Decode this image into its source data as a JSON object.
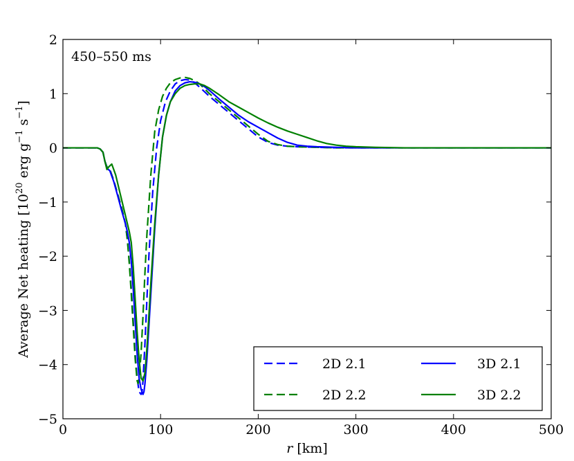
{
  "chart_data": {
    "type": "line",
    "title": "",
    "annotation": "450–550 ms",
    "xlabel_var": "r",
    "xlabel_unit": " [km]",
    "ylabel": "Average Net heating [10",
    "ylabel_exp1": "20",
    "ylabel_mid": " erg g",
    "ylabel_exp2": "−1",
    "ylabel_mid2": " s",
    "ylabel_exp3": "−1",
    "ylabel_end": "]",
    "xlim": [
      0,
      500
    ],
    "ylim": [
      -5,
      2
    ],
    "xticks": [
      0,
      100,
      200,
      300,
      400,
      500
    ],
    "xtick_labels": [
      "0",
      "100",
      "200",
      "300",
      "400",
      "500"
    ],
    "yticks": [
      -5,
      -4,
      -3,
      -2,
      -1,
      0,
      1,
      2
    ],
    "ytick_labels": [
      "−5",
      "−4",
      "−3",
      "−2",
      "−1",
      "0",
      "1",
      "2"
    ],
    "legend_location": "lower-right",
    "series": [
      {
        "name": "2D 2.1",
        "color": "#0000ff",
        "style": "dashed",
        "x": [
          0,
          30,
          35,
          38,
          41,
          43,
          45,
          48,
          52,
          56,
          60,
          64,
          66,
          68,
          70,
          72,
          74,
          76,
          78,
          80,
          81,
          82,
          84,
          86,
          88,
          92,
          96,
          100,
          105,
          110,
          115,
          120,
          125,
          130,
          135,
          140,
          150,
          160,
          170,
          180,
          190,
          200,
          210,
          220,
          230,
          240,
          260,
          280,
          300,
          350,
          400,
          450,
          500
        ],
        "y": [
          0,
          0,
          0,
          -0.02,
          -0.08,
          -0.25,
          -0.35,
          -0.4,
          -0.6,
          -0.85,
          -1.1,
          -1.4,
          -1.7,
          -2.1,
          -2.6,
          -3.2,
          -3.8,
          -4.25,
          -4.5,
          -4.55,
          -4.5,
          -4.3,
          -3.6,
          -2.8,
          -2.0,
          -0.8,
          0.0,
          0.5,
          0.85,
          1.05,
          1.18,
          1.24,
          1.26,
          1.25,
          1.2,
          1.12,
          0.95,
          0.8,
          0.65,
          0.5,
          0.35,
          0.2,
          0.1,
          0.05,
          0.03,
          0.02,
          0.01,
          0.0,
          0.0,
          0.0,
          0.0,
          0.0,
          0.0
        ]
      },
      {
        "name": "2D 2.2",
        "color": "#008000",
        "style": "dashed",
        "x": [
          0,
          30,
          35,
          38,
          41,
          43,
          45,
          48,
          52,
          56,
          60,
          64,
          66,
          68,
          70,
          72,
          74,
          76,
          77,
          78,
          80,
          82,
          84,
          86,
          90,
          94,
          98,
          102,
          106,
          110,
          115,
          120,
          125,
          130,
          135,
          140,
          150,
          160,
          170,
          180,
          190,
          200,
          210,
          220,
          230,
          240,
          260,
          280,
          300,
          350,
          400,
          450,
          500
        ],
        "y": [
          0,
          0,
          0,
          -0.02,
          -0.08,
          -0.25,
          -0.35,
          -0.4,
          -0.6,
          -0.85,
          -1.1,
          -1.4,
          -1.7,
          -2.15,
          -2.7,
          -3.3,
          -3.9,
          -4.3,
          -4.35,
          -4.25,
          -3.8,
          -3.1,
          -2.3,
          -1.6,
          -0.5,
          0.3,
          0.7,
          0.95,
          1.1,
          1.2,
          1.26,
          1.29,
          1.3,
          1.28,
          1.24,
          1.18,
          1.0,
          0.85,
          0.7,
          0.55,
          0.4,
          0.25,
          0.12,
          0.06,
          0.03,
          0.02,
          0.01,
          0.0,
          0.0,
          0.0,
          0.0,
          0.0,
          0.0
        ]
      },
      {
        "name": "3D 2.1",
        "color": "#0000ff",
        "style": "solid",
        "x": [
          0,
          30,
          35,
          38,
          41,
          43,
          45,
          48,
          52,
          56,
          60,
          64,
          66,
          68,
          70,
          72,
          74,
          76,
          78,
          80,
          82,
          83,
          84,
          86,
          88,
          90,
          94,
          98,
          102,
          106,
          110,
          115,
          120,
          125,
          130,
          135,
          140,
          145,
          150,
          160,
          170,
          180,
          190,
          200,
          210,
          220,
          230,
          240,
          250,
          260,
          280,
          300,
          350,
          400,
          450,
          500
        ],
        "y": [
          0,
          0,
          0,
          -0.02,
          -0.08,
          -0.25,
          -0.38,
          -0.42,
          -0.62,
          -0.88,
          -1.15,
          -1.4,
          -1.55,
          -1.75,
          -2.1,
          -2.6,
          -3.2,
          -3.8,
          -4.25,
          -4.45,
          -4.55,
          -4.5,
          -4.35,
          -3.9,
          -3.3,
          -2.7,
          -1.5,
          -0.5,
          0.2,
          0.6,
          0.85,
          1.05,
          1.15,
          1.2,
          1.22,
          1.21,
          1.18,
          1.13,
          1.06,
          0.9,
          0.75,
          0.6,
          0.48,
          0.38,
          0.28,
          0.18,
          0.1,
          0.05,
          0.03,
          0.02,
          0.01,
          0.0,
          0.0,
          0.0,
          0.0,
          0.0
        ]
      },
      {
        "name": "3D 2.2",
        "color": "#008000",
        "style": "solid",
        "x": [
          0,
          30,
          35,
          38,
          41,
          43,
          45,
          47,
          50,
          54,
          58,
          62,
          66,
          68,
          70,
          72,
          74,
          76,
          78,
          80,
          82,
          84,
          86,
          88,
          90,
          94,
          98,
          102,
          106,
          110,
          115,
          120,
          125,
          130,
          135,
          140,
          145,
          150,
          160,
          170,
          180,
          190,
          200,
          210,
          220,
          230,
          240,
          250,
          260,
          270,
          280,
          290,
          300,
          320,
          350,
          400,
          450,
          500
        ],
        "y": [
          0,
          0,
          0,
          -0.02,
          -0.08,
          -0.25,
          -0.4,
          -0.35,
          -0.3,
          -0.5,
          -0.8,
          -1.1,
          -1.4,
          -1.55,
          -1.75,
          -2.2,
          -2.8,
          -3.4,
          -3.9,
          -4.25,
          -4.3,
          -4.15,
          -3.7,
          -3.1,
          -2.5,
          -1.4,
          -0.5,
          0.2,
          0.6,
          0.85,
          1.0,
          1.1,
          1.15,
          1.17,
          1.18,
          1.18,
          1.15,
          1.1,
          0.98,
          0.85,
          0.75,
          0.65,
          0.55,
          0.46,
          0.38,
          0.31,
          0.25,
          0.19,
          0.13,
          0.08,
          0.05,
          0.03,
          0.02,
          0.01,
          0.0,
          0.0,
          0.0,
          0.0
        ]
      }
    ]
  }
}
